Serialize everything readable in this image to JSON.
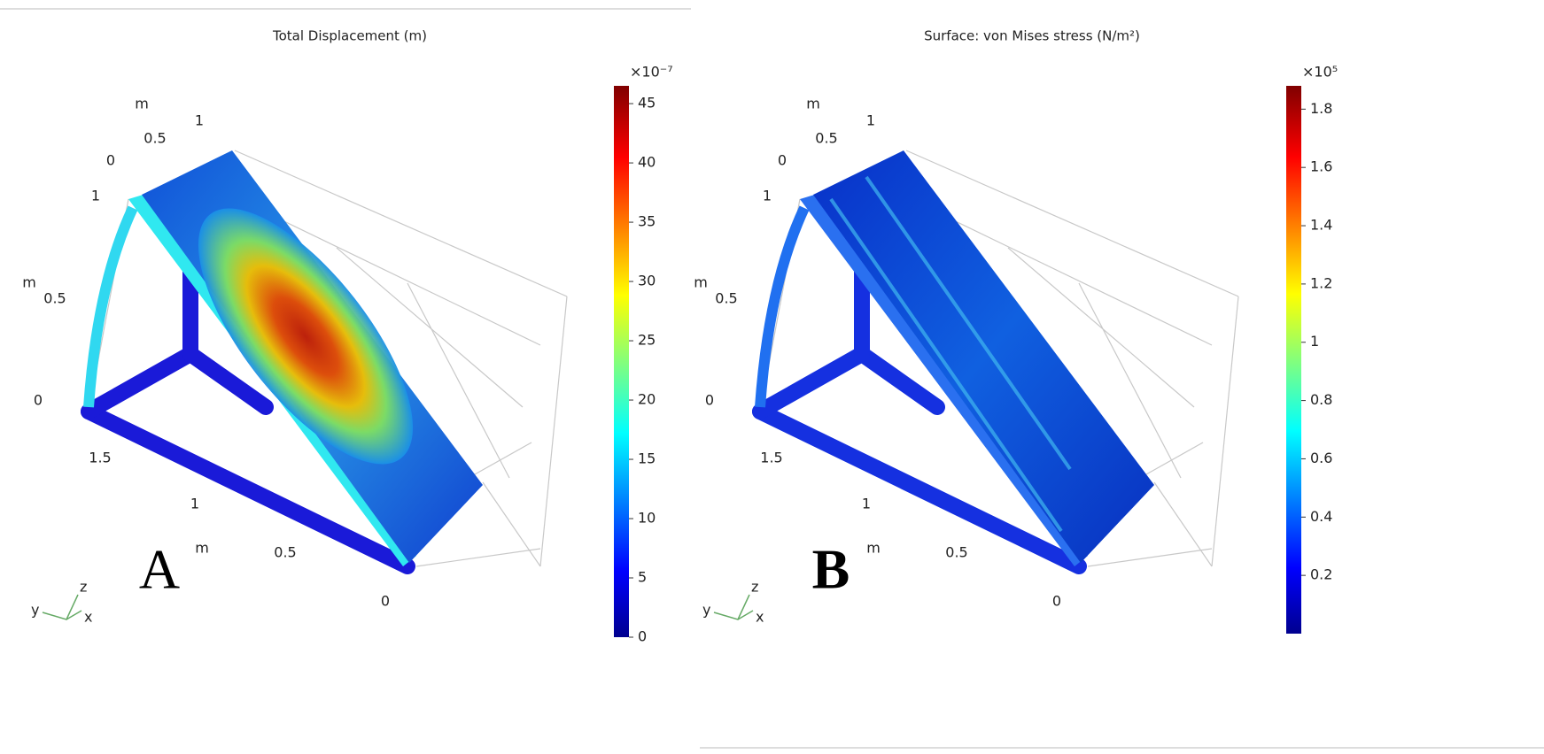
{
  "panels": [
    {
      "title": "Total Displacement (m)",
      "letter": "A",
      "colorbar": {
        "multiplier": "×10⁻⁷",
        "range": [
          0,
          46.5
        ],
        "ticks": [
          0,
          5,
          10,
          15,
          20,
          25,
          30,
          35,
          40,
          45
        ]
      },
      "axis_labels": [
        "m",
        "0.5",
        "1",
        "0",
        "1",
        "m",
        "0.5",
        "0",
        "1.5",
        "1",
        "m",
        "0.5",
        "0"
      ],
      "triad": [
        "y",
        "z",
        "x"
      ]
    },
    {
      "title": "Surface: von Mises stress (N/m²)",
      "letter": "B",
      "colorbar": {
        "multiplier": "×10⁵",
        "range": [
          0,
          1.88
        ],
        "ticks": [
          0.2,
          0.4,
          0.6,
          0.8,
          1,
          1.2,
          1.4,
          1.6,
          1.8
        ]
      },
      "axis_labels": [
        "m",
        "0.5",
        "1",
        "0",
        "1",
        "m",
        "0.5",
        "0",
        "1.5",
        "1",
        "m",
        "0.5",
        "0"
      ],
      "triad": [
        "y",
        "z",
        "x"
      ]
    }
  ]
}
